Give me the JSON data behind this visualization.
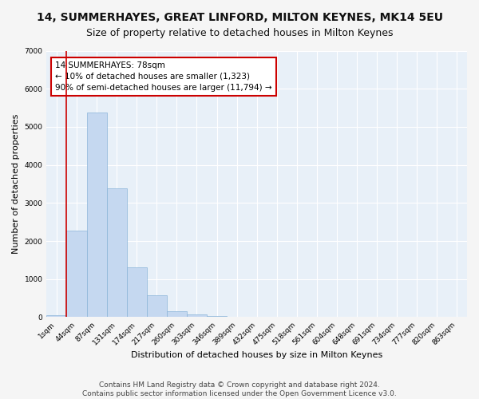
{
  "title": "14, SUMMERHAYES, GREAT LINFORD, MILTON KEYNES, MK14 5EU",
  "subtitle": "Size of property relative to detached houses in Milton Keynes",
  "xlabel": "Distribution of detached houses by size in Milton Keynes",
  "ylabel": "Number of detached properties",
  "categories": [
    "1sqm",
    "44sqm",
    "87sqm",
    "131sqm",
    "174sqm",
    "217sqm",
    "260sqm",
    "303sqm",
    "346sqm",
    "389sqm",
    "432sqm",
    "475sqm",
    "518sqm",
    "561sqm",
    "604sqm",
    "648sqm",
    "691sqm",
    "734sqm",
    "777sqm",
    "820sqm",
    "863sqm"
  ],
  "values": [
    55,
    2270,
    5380,
    3380,
    1320,
    580,
    165,
    75,
    35,
    10,
    5,
    2,
    1,
    0,
    0,
    0,
    0,
    0,
    0,
    0,
    0
  ],
  "bar_color": "#c5d8f0",
  "bar_edge_color": "#8ab4d8",
  "vline_x_index": 1,
  "vline_color": "#cc0000",
  "annotation_box_text": "14 SUMMERHAYES: 78sqm\n← 10% of detached houses are smaller (1,323)\n90% of semi-detached houses are larger (11,794) →",
  "box_edge_color": "#cc0000",
  "ylim": [
    0,
    7000
  ],
  "yticks": [
    0,
    1000,
    2000,
    3000,
    4000,
    5000,
    6000,
    7000
  ],
  "footer": "Contains HM Land Registry data © Crown copyright and database right 2024.\nContains public sector information licensed under the Open Government Licence v3.0.",
  "bg_color": "#e8f0f8",
  "grid_color": "#ffffff",
  "fig_bg_color": "#f5f5f5",
  "title_fontsize": 10,
  "subtitle_fontsize": 9,
  "axis_label_fontsize": 8,
  "tick_fontsize": 6.5,
  "footer_fontsize": 6.5,
  "annot_fontsize": 7.5
}
